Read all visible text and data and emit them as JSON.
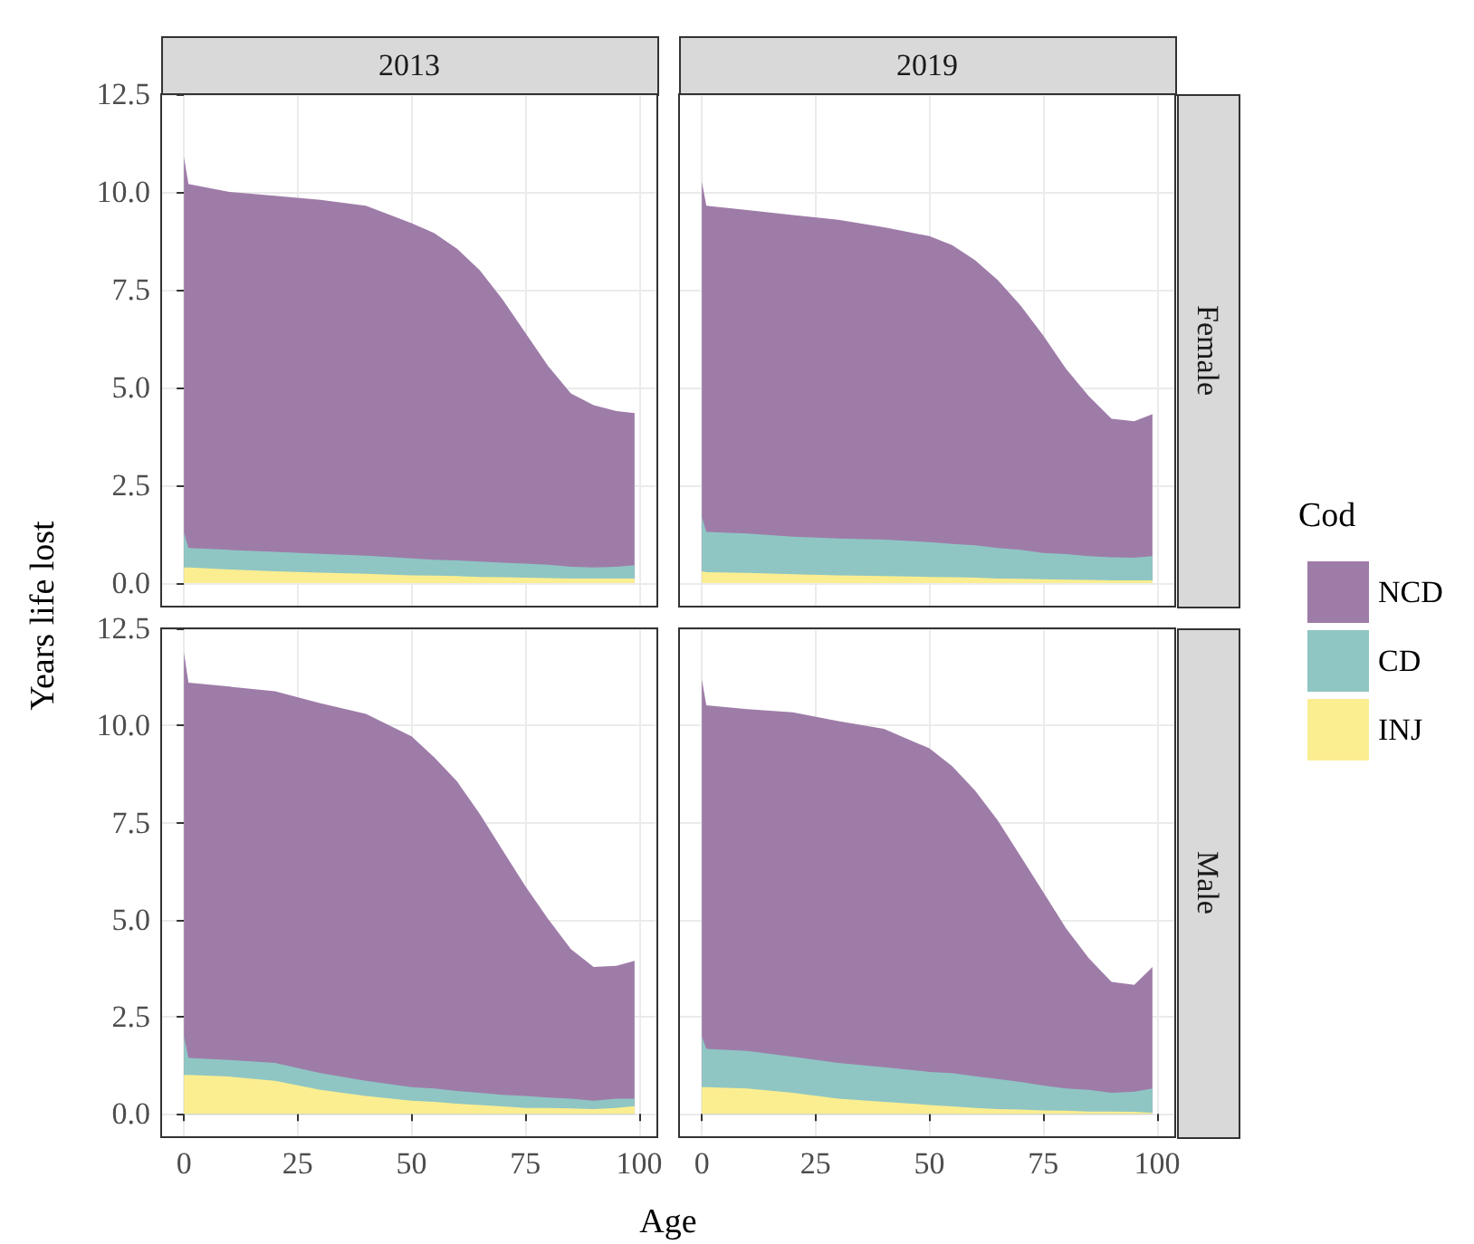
{
  "chart_data": [
    {
      "type": "area",
      "title": "2013",
      "ylabel": "Years life lost",
      "stacked": true,
      "grid": true,
      "tick_labels": "y",
      "x": [
        0,
        1,
        10,
        20,
        30,
        40,
        50,
        55,
        60,
        65,
        70,
        75,
        80,
        85,
        90,
        95,
        99
      ],
      "xlim": [
        -5,
        104
      ],
      "xticks": [
        0,
        25,
        50,
        75,
        100
      ],
      "ylim": [
        -0.6,
        12.5
      ],
      "yticks": [
        {
          "value": 0,
          "label": "0.0"
        },
        {
          "value": 2.5,
          "label": "2.5"
        },
        {
          "value": 5,
          "label": "5.0"
        },
        {
          "value": 7.5,
          "label": "7.5"
        },
        {
          "value": 10,
          "label": "10.0"
        },
        {
          "value": 12.5,
          "label": "12.5"
        }
      ],
      "series": [
        {
          "color": "#fbee91",
          "values": [
            0.4,
            0.4,
            0.35,
            0.3,
            0.27,
            0.24,
            0.2,
            0.19,
            0.18,
            0.16,
            0.15,
            0.14,
            0.13,
            0.12,
            0.12,
            0.12,
            0.12
          ]
        },
        {
          "color": "#8fc6c4",
          "values": [
            0.9,
            0.5,
            0.5,
            0.5,
            0.48,
            0.46,
            0.43,
            0.41,
            0.4,
            0.39,
            0.37,
            0.36,
            0.34,
            0.3,
            0.28,
            0.3,
            0.34
          ]
        },
        {
          "color": "#9e7ca8",
          "values": [
            9.6,
            9.3,
            9.15,
            9.1,
            9.05,
            8.95,
            8.57,
            8.35,
            7.97,
            7.45,
            6.73,
            5.9,
            5.08,
            4.43,
            4.15,
            3.98,
            3.89
          ]
        }
      ]
    },
    {
      "type": "area",
      "title": "2019",
      "y2label": "Female",
      "stacked": true,
      "grid": true,
      "tick_labels": false,
      "legend": "right",
      "legend_title": "Cod",
      "x": [
        0,
        1,
        10,
        20,
        30,
        40,
        50,
        55,
        60,
        65,
        70,
        75,
        80,
        85,
        90,
        95,
        99
      ],
      "xlim": [
        -5,
        104
      ],
      "xticks": [
        0,
        25,
        50,
        75,
        100
      ],
      "ylim": [
        -0.6,
        12.5
      ],
      "yticks": [
        {
          "value": 0,
          "label": null
        },
        {
          "value": 2.5,
          "label": null
        },
        {
          "value": 5,
          "label": null
        },
        {
          "value": 7.5,
          "label": null
        },
        {
          "value": 10,
          "label": null
        },
        {
          "value": 12.5,
          "label": null
        }
      ],
      "series": [
        {
          "name": "INJ",
          "color": "#fbee91",
          "values": [
            0.3,
            0.28,
            0.26,
            0.23,
            0.2,
            0.18,
            0.16,
            0.15,
            0.14,
            0.12,
            0.11,
            0.1,
            0.09,
            0.08,
            0.07,
            0.07,
            0.07
          ]
        },
        {
          "name": "CD",
          "color": "#8fc6c4",
          "values": [
            1.4,
            1.03,
            1.01,
            0.96,
            0.94,
            0.93,
            0.89,
            0.85,
            0.83,
            0.78,
            0.74,
            0.67,
            0.65,
            0.61,
            0.59,
            0.58,
            0.62
          ]
        },
        {
          "name": "NCD",
          "color": "#9e7ca8",
          "values": [
            8.56,
            8.34,
            8.27,
            8.22,
            8.15,
            7.99,
            7.82,
            7.64,
            7.29,
            6.85,
            6.25,
            5.56,
            4.74,
            4.09,
            3.54,
            3.49,
            3.63
          ]
        }
      ]
    },
    {
      "type": "area",
      "xlabel": "Age",
      "stacked": true,
      "grid": true,
      "x": [
        0,
        1,
        10,
        20,
        30,
        40,
        50,
        55,
        60,
        65,
        70,
        75,
        80,
        85,
        90,
        95,
        99
      ],
      "xlim": [
        -5,
        104
      ],
      "xticks": [
        0,
        25,
        50,
        75,
        100
      ],
      "ylim": [
        -0.6,
        12.5
      ],
      "yticks": [
        {
          "value": 0,
          "label": "0.0"
        },
        {
          "value": 2.5,
          "label": "2.5"
        },
        {
          "value": 5,
          "label": "5.0"
        },
        {
          "value": 7.5,
          "label": "7.5"
        },
        {
          "value": 10,
          "label": "10.0"
        },
        {
          "value": 12.5,
          "label": "12.5"
        }
      ],
      "series": [
        {
          "color": "#fbee91",
          "values": [
            1.0,
            1.0,
            0.96,
            0.85,
            0.62,
            0.46,
            0.34,
            0.31,
            0.26,
            0.23,
            0.19,
            0.15,
            0.15,
            0.14,
            0.12,
            0.15,
            0.2
          ]
        },
        {
          "color": "#8fc6c4",
          "values": [
            1.0,
            0.44,
            0.43,
            0.46,
            0.43,
            0.39,
            0.35,
            0.34,
            0.33,
            0.31,
            0.3,
            0.31,
            0.27,
            0.25,
            0.22,
            0.24,
            0.19
          ]
        },
        {
          "color": "#9e7ca8",
          "values": [
            9.88,
            9.66,
            9.61,
            9.57,
            9.52,
            9.45,
            9.03,
            8.53,
            7.97,
            7.18,
            6.3,
            5.4,
            4.6,
            3.85,
            3.44,
            3.42,
            3.55
          ]
        }
      ]
    },
    {
      "type": "area",
      "y2label": "Male",
      "stacked": true,
      "grid": true,
      "tick_labels": "x",
      "x": [
        0,
        1,
        10,
        20,
        30,
        40,
        50,
        55,
        60,
        65,
        70,
        75,
        80,
        85,
        90,
        95,
        99
      ],
      "xlim": [
        -5,
        104
      ],
      "xticks": [
        0,
        25,
        50,
        75,
        100
      ],
      "ylim": [
        -0.6,
        12.5
      ],
      "yticks": [
        {
          "value": 0,
          "label": null
        },
        {
          "value": 2.5,
          "label": null
        },
        {
          "value": 5,
          "label": null
        },
        {
          "value": 7.5,
          "label": null
        },
        {
          "value": 10,
          "label": null
        },
        {
          "value": 12.5,
          "label": null
        }
      ],
      "series": [
        {
          "color": "#fbee91",
          "values": [
            0.69,
            0.69,
            0.65,
            0.54,
            0.39,
            0.31,
            0.23,
            0.19,
            0.15,
            0.12,
            0.11,
            0.09,
            0.08,
            0.06,
            0.06,
            0.05,
            0.03
          ]
        },
        {
          "color": "#8fc6c4",
          "values": [
            1.31,
            0.98,
            0.97,
            0.93,
            0.92,
            0.89,
            0.85,
            0.86,
            0.82,
            0.78,
            0.71,
            0.64,
            0.57,
            0.56,
            0.48,
            0.52,
            0.62
          ]
        },
        {
          "color": "#9e7ca8",
          "values": [
            9.19,
            8.85,
            8.8,
            8.87,
            8.8,
            8.71,
            8.33,
            7.9,
            7.36,
            6.66,
            5.82,
            4.98,
            4.13,
            3.39,
            2.86,
            2.75,
            3.13
          ]
        }
      ]
    }
  ]
}
